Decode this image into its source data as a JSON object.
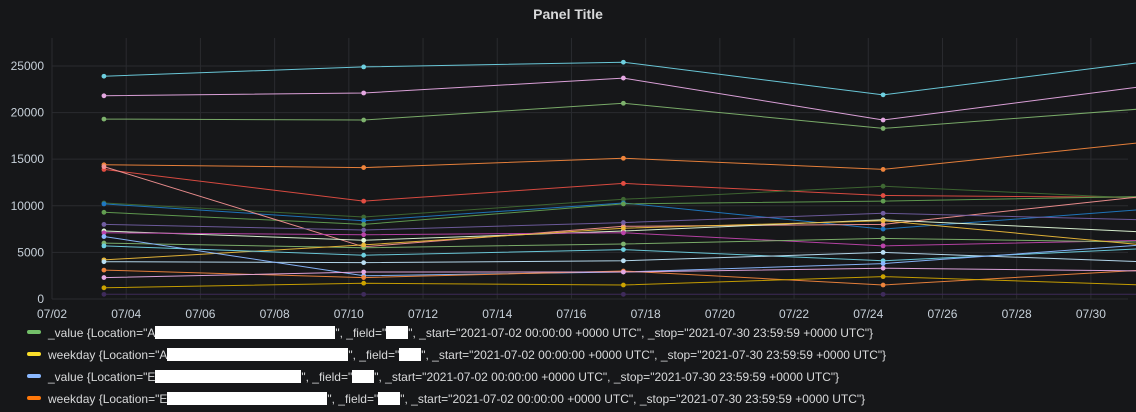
{
  "panel": {
    "title": "Panel Title"
  },
  "chart_data": {
    "type": "line",
    "title": "Panel Title",
    "x_ticks": [
      "07/02",
      "07/04",
      "07/06",
      "07/08",
      "07/10",
      "07/12",
      "07/14",
      "07/16",
      "07/18",
      "07/20",
      "07/22",
      "07/24",
      "07/26",
      "07/28",
      "07/30"
    ],
    "xlim": [
      "2021-07-02",
      "2021-07-31"
    ],
    "y_ticks": [
      0,
      5000,
      10000,
      15000,
      20000,
      25000
    ],
    "ylim": [
      0,
      28000
    ],
    "x": [
      "2021-07-03",
      "2021-07-10",
      "2021-07-17",
      "2021-07-24",
      "2021-07-31"
    ],
    "grid": true,
    "series": [
      {
        "color": "#6ed0e0",
        "values": [
          23900,
          24900,
          25400,
          21900,
          25400
        ]
      },
      {
        "color": "#e5a8e2",
        "values": [
          21800,
          22100,
          23700,
          19200,
          22800
        ]
      },
      {
        "color": "#7eb26d",
        "values": [
          19300,
          19200,
          21000,
          18300,
          20400
        ]
      },
      {
        "color": "#ef843c",
        "values": [
          14400,
          14100,
          15100,
          13900,
          16800
        ]
      },
      {
        "color": "#e24d42",
        "values": [
          13900,
          10500,
          12400,
          11100,
          10900
        ]
      },
      {
        "color": "#3f6833",
        "values": [
          10300,
          8800,
          10700,
          12100,
          10800
        ]
      },
      {
        "color": "#1f78c1",
        "values": [
          10200,
          8400,
          10300,
          7500,
          9600
        ]
      },
      {
        "color": "#629e51",
        "values": [
          9300,
          8000,
          10200,
          10500,
          11000
        ]
      },
      {
        "color": "#f29191",
        "values": [
          14200,
          5600,
          7800,
          8000,
          11000
        ]
      },
      {
        "color": "#705da0",
        "values": [
          8000,
          7400,
          8200,
          9200,
          8500
        ]
      },
      {
        "color": "#e0f9d7",
        "values": [
          7300,
          6300,
          7300,
          8500,
          7200
        ]
      },
      {
        "color": "#ba43a9",
        "values": [
          7100,
          6900,
          7100,
          5700,
          6300
        ]
      },
      {
        "color": "#7eb26d",
        "values": [
          6000,
          5500,
          5900,
          6500,
          6100
        ]
      },
      {
        "color": "#eab839",
        "values": [
          4200,
          5800,
          7600,
          8400,
          5800
        ]
      },
      {
        "color": "#6ed0e0",
        "values": [
          5700,
          4700,
          5300,
          4100,
          5400
        ]
      },
      {
        "color": "#badff4",
        "values": [
          4000,
          3900,
          4100,
          5000,
          4000
        ]
      },
      {
        "color": "#8ab8ff",
        "values": [
          6700,
          2500,
          2900,
          3800,
          5800
        ]
      },
      {
        "color": "#ef843c",
        "values": [
          3100,
          2300,
          3000,
          1500,
          3100
        ]
      },
      {
        "color": "#e5a8e2",
        "values": [
          2300,
          2900,
          2900,
          3300,
          3000
        ]
      },
      {
        "color": "#cca300",
        "values": [
          1200,
          1700,
          1500,
          2400,
          1500
        ]
      },
      {
        "color": "#3f2b5b",
        "values": [
          500,
          500,
          500,
          500,
          500
        ]
      }
    ]
  },
  "legend": {
    "items": [
      {
        "color": "#73bf69",
        "prefix": "_value {Location=\"A",
        "mid": "\", _field=\"",
        "suffix": "\", _start=\"2021-07-02 00:00:00 +0000 UTC\", _stop=\"2021-07-30 23:59:59 +0000 UTC\"}"
      },
      {
        "color": "#fade2a",
        "prefix": "weekday {Location=\"A",
        "mid": "\", _field=\"",
        "suffix": "\", _start=\"2021-07-02 00:00:00 +0000 UTC\", _stop=\"2021-07-30 23:59:59 +0000 UTC\"}"
      },
      {
        "color": "#8ab8ff",
        "prefix": "_value {Location=\"E",
        "mid": "\", _field=\"",
        "suffix": "\", _start=\"2021-07-02 00:00:00 +0000 UTC\", _stop=\"2021-07-30 23:59:59 +0000 UTC\"}"
      },
      {
        "color": "#ff780a",
        "prefix": "weekday {Location=\"E",
        "mid": "\", _field=\"",
        "suffix": "\", _start=\"2021-07-02 00:00:00 +0000 UTC\", _stop=\"2021-07-30 23:59:59 +0000 UTC\"}"
      }
    ]
  }
}
